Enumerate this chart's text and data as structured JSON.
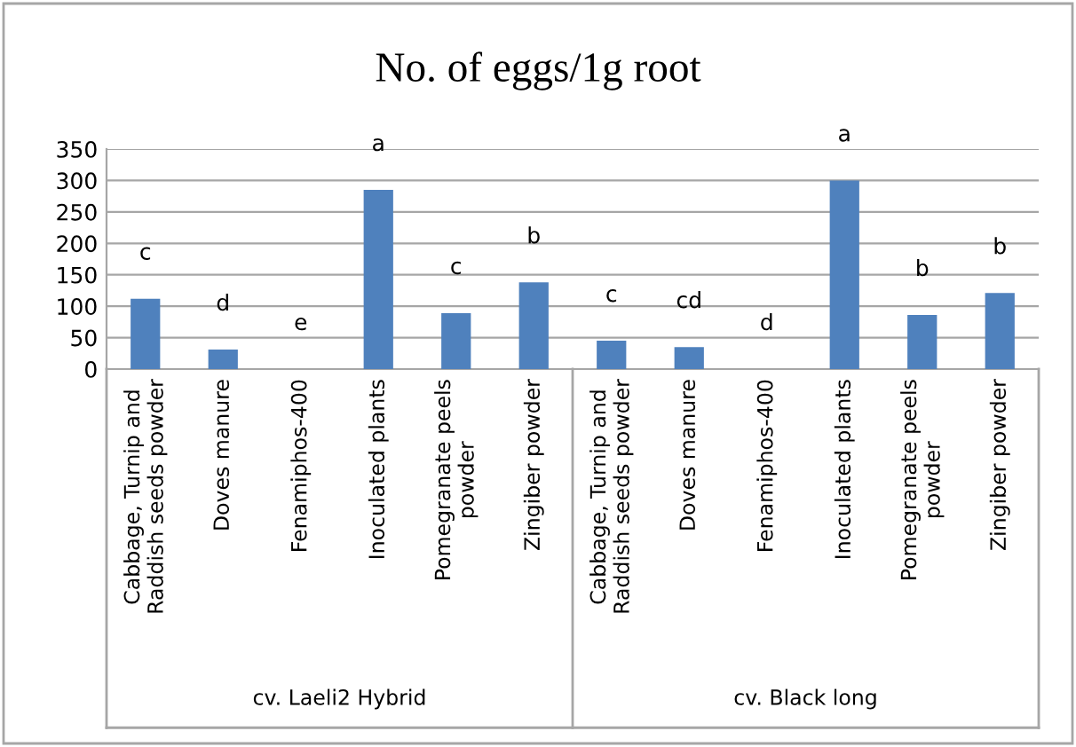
{
  "chart_data": {
    "type": "bar",
    "title": "No. of eggs/1g root",
    "categories": [
      "Cabbage, Turnip and\nRaddish seeds powder",
      "Doves manure",
      "Fenamiphos-400",
      "Inoculated plants",
      "Pomegranate peels\npowder",
      "Zingiber powder",
      "Cabbage, Turnip and\nRaddish seeds powder",
      "Doves manure",
      "Fenamiphos-400",
      "Inoculated plants",
      "Pomegranate peels\npowder",
      "Zingiber powder"
    ],
    "values": [
      112,
      31,
      0,
      285,
      89,
      138,
      45,
      35,
      0,
      300,
      86,
      121
    ],
    "value_labels": [
      "c",
      "d",
      "e",
      "a",
      "c",
      "b",
      "c",
      "cd",
      "d",
      "a",
      "b",
      "b"
    ],
    "color": "#4f81bd",
    "ylim": [
      0,
      350
    ],
    "yticks": [
      0,
      50,
      100,
      150,
      200,
      250,
      300,
      350
    ],
    "grid": "y",
    "annotations": [
      "cv. Laeli2 Hybrid",
      "cv. Black long"
    ]
  }
}
